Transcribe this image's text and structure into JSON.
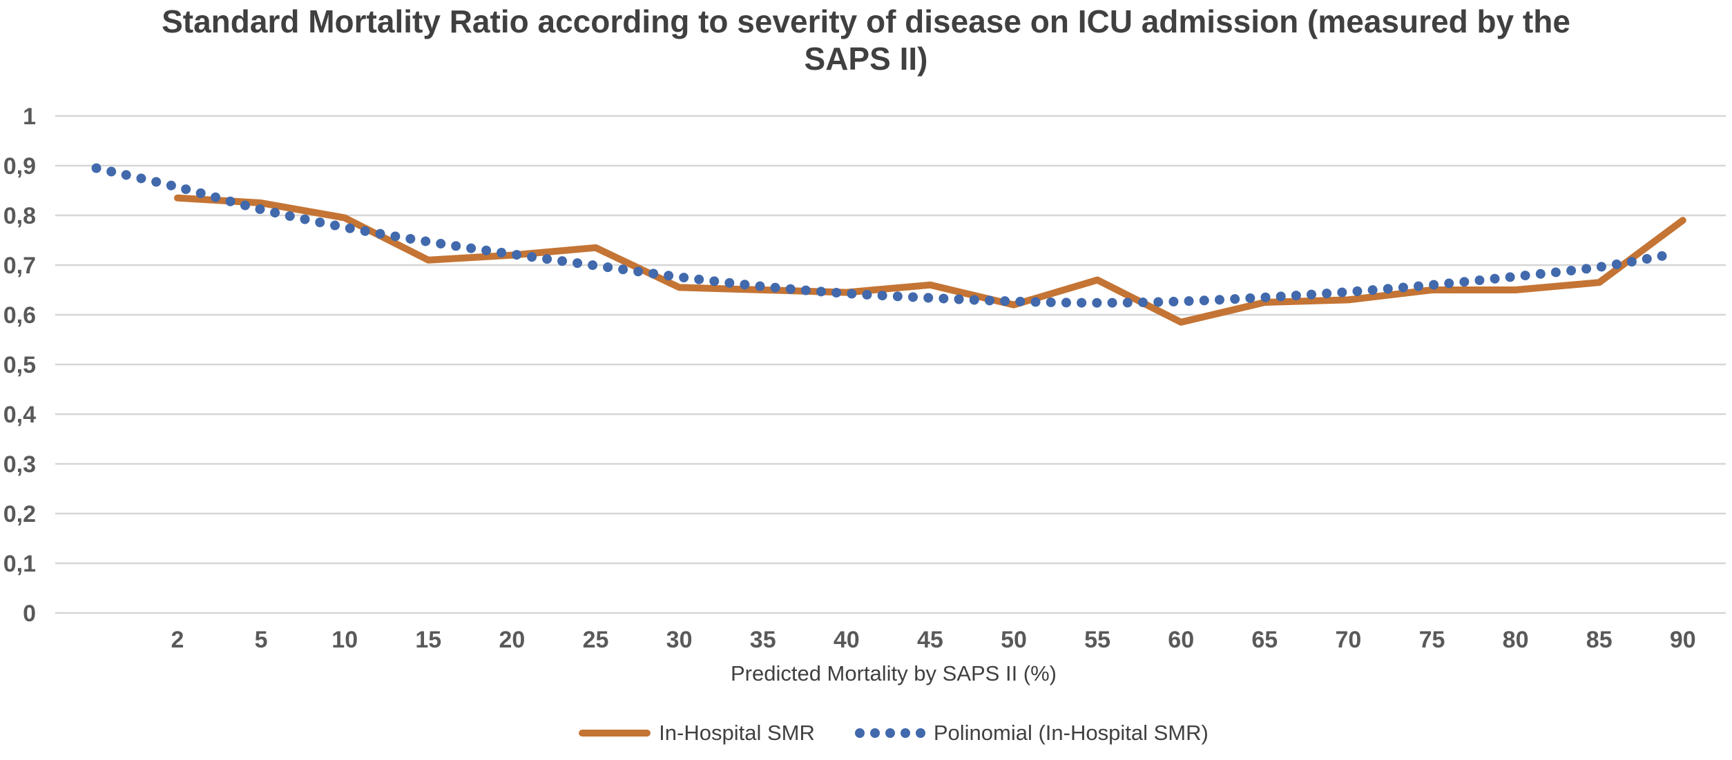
{
  "chart": {
    "title_line1": "Standard Mortality Ratio according to severity of disease on ICU admission (measured by the",
    "title_line2": "SAPS II)",
    "x_axis_title": "Predicted Mortality by SAPS II (%)",
    "legend": {
      "series1_label": "In-Hospital SMR",
      "series2_label": "Polinomial (In-Hospital SMR)"
    }
  },
  "colors": {
    "smr_line": "#c47434",
    "trendline": "#4169ac",
    "gridline": "#d6d6d6",
    "tick_text": "#595959",
    "title_text": "#404040"
  },
  "chart_data": {
    "type": "line",
    "title": "Standard Mortality Ratio according to severity of disease on ICU admission (measured by the SAPS II)",
    "xlabel": "Predicted Mortality by SAPS II (%)",
    "ylabel": "",
    "ylim": [
      0,
      1
    ],
    "grid": true,
    "legend_position": "bottom",
    "decimal_separator": ",",
    "y_ticks": [
      {
        "label": "0",
        "value": 0
      },
      {
        "label": "0,1",
        "value": 0.1
      },
      {
        "label": "0,2",
        "value": 0.2
      },
      {
        "label": "0,3",
        "value": 0.3
      },
      {
        "label": "0,4",
        "value": 0.4
      },
      {
        "label": "0,5",
        "value": 0.5
      },
      {
        "label": "0,6",
        "value": 0.6
      },
      {
        "label": "0,7",
        "value": 0.7
      },
      {
        "label": "0,8",
        "value": 0.8
      },
      {
        "label": "0,9",
        "value": 0.9
      },
      {
        "label": "1",
        "value": 1
      }
    ],
    "categories": [
      "2",
      "5",
      "10",
      "15",
      "20",
      "25",
      "30",
      "35",
      "40",
      "45",
      "50",
      "55",
      "60",
      "65",
      "70",
      "75",
      "80",
      "85",
      "90"
    ],
    "series": [
      {
        "name": "In-Hospital SMR",
        "style": "solid-line",
        "values": [
          0.835,
          0.825,
          0.795,
          0.71,
          0.72,
          0.735,
          0.655,
          0.65,
          0.645,
          0.66,
          0.62,
          0.67,
          0.585,
          0.625,
          0.63,
          0.65,
          0.65,
          0.665,
          0.79
        ]
      },
      {
        "name": "Polinomial (In-Hospital SMR)",
        "style": "dotted-trendline",
        "points": [
          {
            "x": -0.97,
            "y": 0.895
          },
          {
            "x": 0,
            "y": 0.857
          },
          {
            "x": 1,
            "y": 0.812
          },
          {
            "x": 2,
            "y": 0.776
          },
          {
            "x": 3,
            "y": 0.747
          },
          {
            "x": 4,
            "y": 0.722
          },
          {
            "x": 5,
            "y": 0.699
          },
          {
            "x": 6,
            "y": 0.676
          },
          {
            "x": 7,
            "y": 0.657
          },
          {
            "x": 8,
            "y": 0.643
          },
          {
            "x": 9,
            "y": 0.634
          },
          {
            "x": 10,
            "y": 0.627
          },
          {
            "x": 11,
            "y": 0.624
          },
          {
            "x": 12,
            "y": 0.627
          },
          {
            "x": 13,
            "y": 0.635
          },
          {
            "x": 14,
            "y": 0.646
          },
          {
            "x": 15,
            "y": 0.66
          },
          {
            "x": 16,
            "y": 0.677
          },
          {
            "x": 17,
            "y": 0.696
          },
          {
            "x": 17.84,
            "y": 0.721
          }
        ]
      }
    ]
  }
}
